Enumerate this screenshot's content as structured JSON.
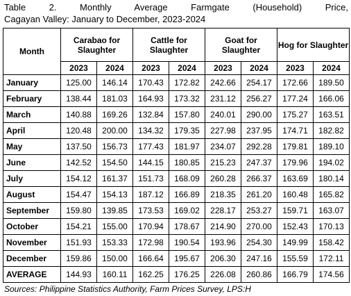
{
  "title": [
    "Table 2. Monthly Average Farmgate (Household) Price,",
    "Cagayan Valley: January to December, 2023-2024"
  ],
  "table": {
    "header": {
      "month": "Month",
      "groups": [
        "Carabao for Slaughter",
        "Cattle for Slaughter",
        "Goat for Slaughter",
        "Hog for Slaughter"
      ],
      "years": [
        "2023",
        "2024",
        "2023",
        "2024",
        "2023",
        "2024",
        "2023",
        "2024"
      ]
    },
    "rows": [
      [
        "January",
        "125.00",
        "146.14",
        "170.43",
        "172.82",
        "242.66",
        "254.17",
        "172.66",
        "189.50"
      ],
      [
        "February",
        "138.44",
        "181.03",
        "164.93",
        "173.32",
        "231.12",
        "256.27",
        "177.24",
        "166.06"
      ],
      [
        "March",
        "140.88",
        "169.26",
        "132.84",
        "157.80",
        "240.01",
        "290.00",
        "175.27",
        "163.51"
      ],
      [
        "April",
        "120.48",
        "200.00",
        "134.32",
        "179.35",
        "227.98",
        "237.95",
        "174.71",
        "182.82"
      ],
      [
        "May",
        "137.50",
        "156.73",
        "177.43",
        "181.97",
        "234.07",
        "292.28",
        "179.81",
        "189.10"
      ],
      [
        "June",
        "142.52",
        "154.50",
        "144.15",
        "180.85",
        "215.23",
        "247.37",
        "179.96",
        "194.02"
      ],
      [
        "July",
        "154.12",
        "161.37",
        "151.73",
        "168.09",
        "260.28",
        "266.37",
        "163.69",
        "180.14"
      ],
      [
        "August",
        "154.47",
        "154.13",
        "187.12",
        "166.89",
        "218.35",
        "261.20",
        "160.48",
        "165.82"
      ],
      [
        "September",
        "159.80",
        "139.85",
        "173.53",
        "169.02",
        "228.17",
        "253.27",
        "159.71",
        "163.07"
      ],
      [
        "October",
        "154.21",
        "155.00",
        "170.94",
        "178.67",
        "214.90",
        "270.00",
        "152.43",
        "170.13"
      ],
      [
        "November",
        "151.93",
        "153.33",
        "172.98",
        "190.54",
        "193.96",
        "254.30",
        "149.99",
        "158.42"
      ],
      [
        "December",
        "159.86",
        "150.00",
        "166.64",
        "195.67",
        "206.30",
        "247.16",
        "155.59",
        "172.11"
      ],
      [
        "AVERAGE",
        "144.93",
        "160.11",
        "162.25",
        "176.25",
        "226.08",
        "260.86",
        "166.79",
        "174.56"
      ]
    ]
  },
  "source": "Sources: Philippine Statistics Authority, Farm Prices Survey, LPS:H"
}
